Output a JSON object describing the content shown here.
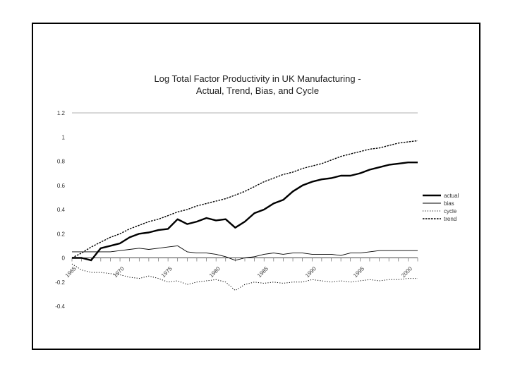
{
  "chart_data": {
    "type": "line",
    "title": "Log Total Factor Productivity in UK Manufacturing -",
    "subtitle": "Actual, Trend, Bias, and Cycle",
    "xlabel": "",
    "ylabel": "",
    "ylim": [
      -0.4,
      1.2
    ],
    "xlim": [
      1965,
      2001
    ],
    "y_ticks": [
      "1.2",
      "1",
      "0.8",
      "0.6",
      "0.4",
      "0.2",
      "0",
      "-0.2",
      "-0.4"
    ],
    "x_tick_labels": [
      "1965",
      "1970",
      "1975",
      "1980",
      "1985",
      "1990",
      "1995",
      "2000"
    ],
    "grid": false,
    "legend_position": "right",
    "x": [
      1965,
      1966,
      1967,
      1968,
      1969,
      1970,
      1971,
      1972,
      1973,
      1974,
      1975,
      1976,
      1977,
      1978,
      1979,
      1980,
      1981,
      1982,
      1983,
      1984,
      1985,
      1986,
      1987,
      1988,
      1989,
      1990,
      1991,
      1992,
      1993,
      1994,
      1995,
      1996,
      1997,
      1998,
      1999,
      2000,
      2001
    ],
    "series": [
      {
        "name": "actual",
        "style": "thick-solid",
        "values": [
          0.0,
          0.0,
          -0.02,
          0.08,
          0.1,
          0.12,
          0.17,
          0.2,
          0.21,
          0.23,
          0.24,
          0.32,
          0.28,
          0.3,
          0.33,
          0.31,
          0.32,
          0.25,
          0.3,
          0.37,
          0.4,
          0.45,
          0.48,
          0.55,
          0.6,
          0.63,
          0.65,
          0.66,
          0.68,
          0.68,
          0.7,
          0.73,
          0.75,
          0.77,
          0.78,
          0.79,
          0.79
        ]
      },
      {
        "name": "bias",
        "style": "thin-solid",
        "values": [
          0.05,
          0.05,
          0.05,
          0.05,
          0.05,
          0.06,
          0.07,
          0.08,
          0.07,
          0.08,
          0.09,
          0.1,
          0.05,
          0.04,
          0.04,
          0.03,
          0.01,
          -0.02,
          0.0,
          0.01,
          0.03,
          0.04,
          0.03,
          0.04,
          0.04,
          0.03,
          0.03,
          0.03,
          0.02,
          0.04,
          0.04,
          0.05,
          0.06,
          0.06,
          0.06,
          0.06,
          0.06
        ]
      },
      {
        "name": "cycle",
        "style": "dotted",
        "values": [
          -0.05,
          -0.1,
          -0.12,
          -0.12,
          -0.13,
          -0.14,
          -0.16,
          -0.17,
          -0.15,
          -0.17,
          -0.2,
          -0.19,
          -0.22,
          -0.2,
          -0.19,
          -0.18,
          -0.2,
          -0.27,
          -0.22,
          -0.2,
          -0.21,
          -0.2,
          -0.21,
          -0.2,
          -0.2,
          -0.18,
          -0.19,
          -0.2,
          -0.19,
          -0.2,
          -0.19,
          -0.18,
          -0.19,
          -0.18,
          -0.18,
          -0.17,
          -0.17
        ]
      },
      {
        "name": "trend",
        "style": "dashed",
        "values": [
          0.0,
          0.04,
          0.09,
          0.13,
          0.17,
          0.2,
          0.24,
          0.27,
          0.3,
          0.32,
          0.35,
          0.38,
          0.4,
          0.43,
          0.45,
          0.47,
          0.49,
          0.52,
          0.55,
          0.59,
          0.63,
          0.66,
          0.69,
          0.71,
          0.74,
          0.76,
          0.78,
          0.81,
          0.84,
          0.86,
          0.88,
          0.9,
          0.91,
          0.93,
          0.95,
          0.96,
          0.97
        ]
      }
    ]
  }
}
